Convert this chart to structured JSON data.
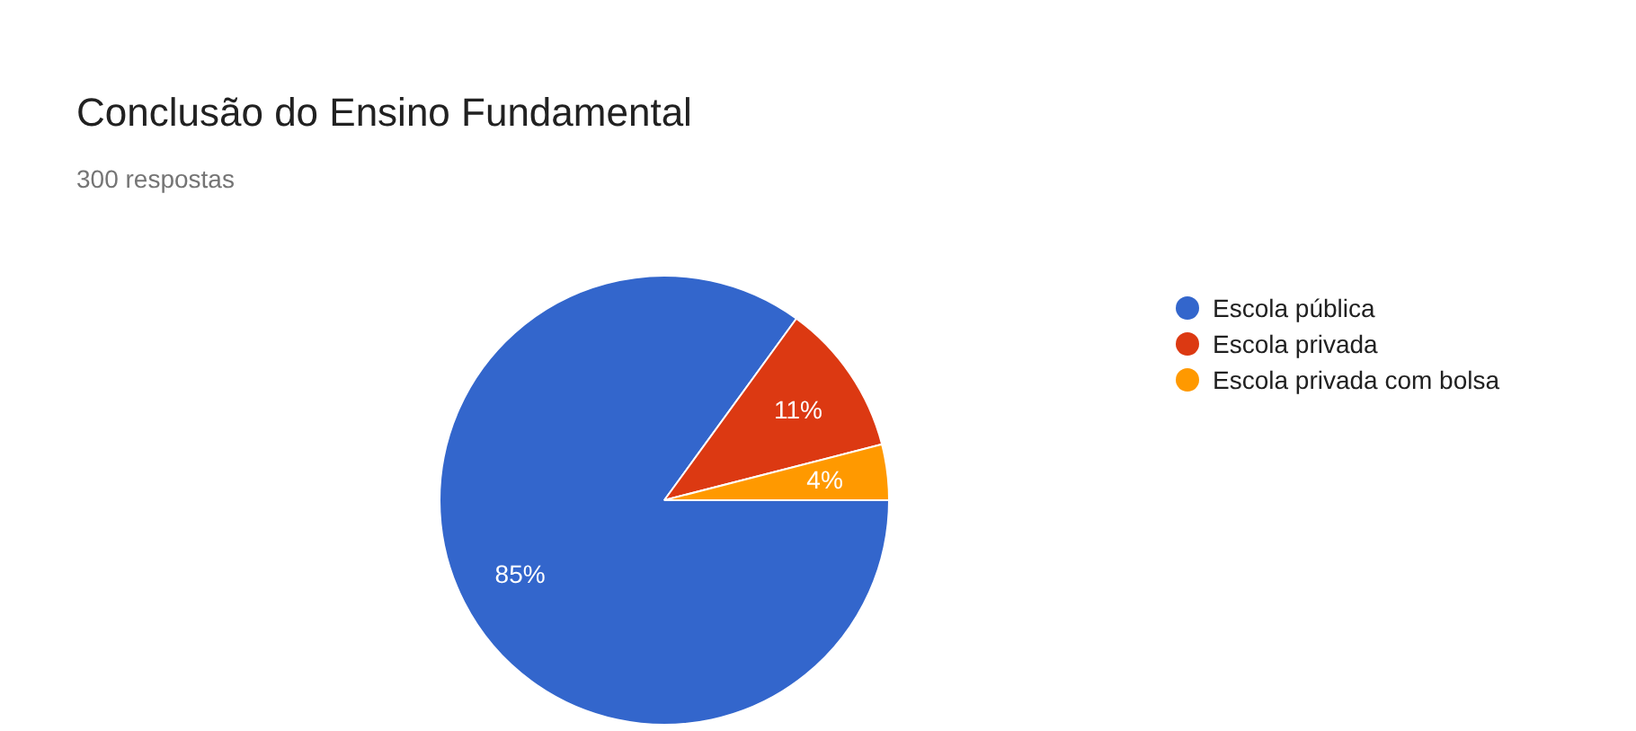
{
  "chart_data": {
    "type": "pie",
    "title": "Conclusão do Ensino Fundamental",
    "subtitle": "300 respostas",
    "categories": [
      "Escola pública",
      "Escola privada",
      "Escola privada com bolsa"
    ],
    "values": [
      85,
      11,
      4
    ],
    "colors": [
      "#3366cc",
      "#dc3912",
      "#ff9900"
    ],
    "value_labels": [
      "85%",
      "11%",
      "4%"
    ],
    "legend": "right"
  }
}
